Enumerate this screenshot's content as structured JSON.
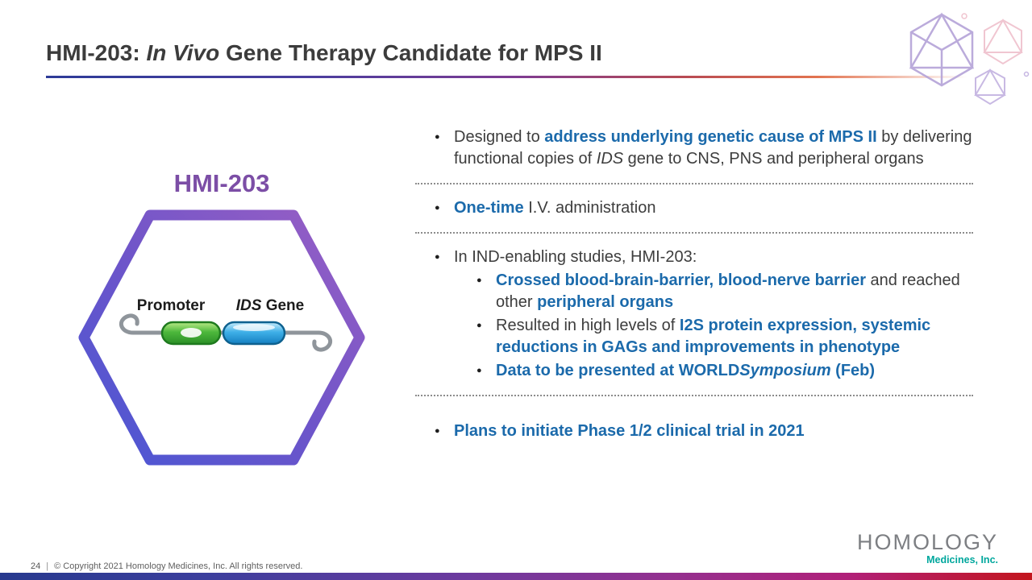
{
  "colors": {
    "accent_blue": "#1b6aab",
    "accent_purple": "#7c4ea6",
    "logo_teal": "#00a79d",
    "text_dark": "#3d3d3d"
  },
  "header": {
    "title_prefix": "HMI-203: ",
    "title_italic": "In Vivo",
    "title_suffix": " Gene Therapy Candidate for MPS II"
  },
  "diagram": {
    "label": "HMI-203",
    "promoter_label": "Promoter",
    "gene_label_italic": "IDS",
    "gene_label_rest": " Gene"
  },
  "content": {
    "blocks": [
      {
        "type": "bullet",
        "level": 1,
        "segments": [
          {
            "style": "normal",
            "text": "Designed to "
          },
          {
            "style": "bold-blue",
            "text": "address underlying genetic cause of MPS II"
          },
          {
            "style": "normal",
            "text": " by delivering functional copies of "
          },
          {
            "style": "italic",
            "text": "IDS"
          },
          {
            "style": "normal",
            "text": " gene to CNS, PNS and peripheral organs"
          }
        ]
      },
      {
        "type": "divider"
      },
      {
        "type": "bullet",
        "level": 1,
        "segments": [
          {
            "style": "bold-blue",
            "text": "One-time"
          },
          {
            "style": "normal",
            "text": " I.V. administration"
          }
        ]
      },
      {
        "type": "divider"
      },
      {
        "type": "bullet",
        "level": 1,
        "segments": [
          {
            "style": "normal",
            "text": "In IND-enabling studies, HMI-203:"
          }
        ]
      },
      {
        "type": "bullet",
        "level": 2,
        "segments": [
          {
            "style": "bold-blue",
            "text": "Crossed blood-brain-barrier, blood-nerve barrier"
          },
          {
            "style": "normal",
            "text": " and reached other "
          },
          {
            "style": "bold-blue",
            "text": "peripheral organs"
          }
        ]
      },
      {
        "type": "bullet",
        "level": 2,
        "segments": [
          {
            "style": "normal",
            "text": "Resulted in high levels of "
          },
          {
            "style": "bold-blue",
            "text": "I2S protein expression, systemic reductions in GAGs and improvements in phenotype"
          }
        ]
      },
      {
        "type": "bullet",
        "level": 2,
        "segments": [
          {
            "style": "bold-blue",
            "text": "Data to be presented at WORLD"
          },
          {
            "style": "bold-blue-italic",
            "text": "Symposium"
          },
          {
            "style": "bold-blue",
            "text": " (Feb)"
          }
        ]
      },
      {
        "type": "divider"
      },
      {
        "type": "bullet",
        "level": 1,
        "segments": [
          {
            "style": "bold-blue",
            "text": "Plans to initiate Phase 1/2 clinical trial in 2021"
          }
        ]
      }
    ]
  },
  "footer": {
    "page_number": "24",
    "divider": "|",
    "copyright": "© Copyright 2021 Homology Medicines, Inc. All rights reserved."
  },
  "logo": {
    "wordmark": "HOMOLOGY",
    "tagline": "Medicines, Inc."
  }
}
